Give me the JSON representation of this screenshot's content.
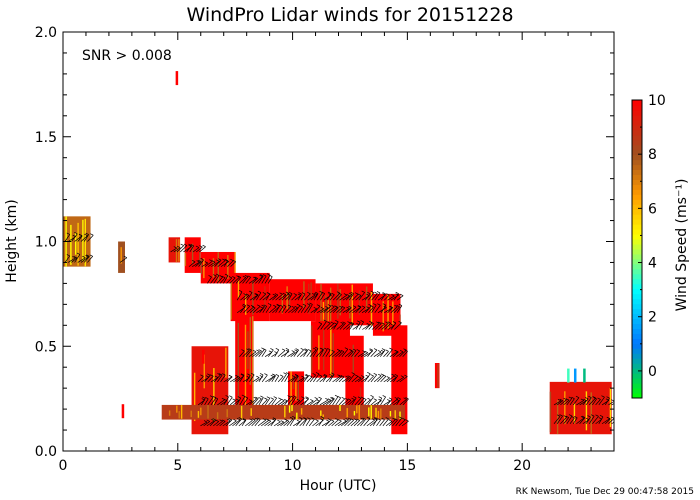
{
  "chart_data": {
    "type": "heatmap",
    "title": "WindPro Lidar winds for 20151228",
    "annotation": "SNR > 0.008",
    "xlabel": "Hour (UTC)",
    "ylabel": "Height (km)",
    "xlim": [
      0,
      24
    ],
    "ylim": [
      0,
      2.0
    ],
    "xticks": [
      {
        "value": 0,
        "label": "0"
      },
      {
        "value": 5,
        "label": "5"
      },
      {
        "value": 10,
        "label": "10"
      },
      {
        "value": 15,
        "label": "15"
      },
      {
        "value": 20,
        "label": "20"
      }
    ],
    "yticks": [
      {
        "value": 0.0,
        "label": "0.0"
      },
      {
        "value": 0.5,
        "label": "0.5"
      },
      {
        "value": 1.0,
        "label": "1.0"
      },
      {
        "value": 1.5,
        "label": "1.5"
      },
      {
        "value": 2.0,
        "label": "2.0"
      }
    ],
    "colorbar": {
      "label": "Wind Speed (ms⁻¹)",
      "range": [
        -1,
        10
      ],
      "ticks": [
        {
          "value": 0,
          "label": "0"
        },
        {
          "value": 2,
          "label": "2"
        },
        {
          "value": 4,
          "label": "4"
        },
        {
          "value": 6,
          "label": "6"
        },
        {
          "value": 8,
          "label": "8"
        },
        {
          "value": 10,
          "label": "10"
        }
      ],
      "stops": [
        {
          "value": -1,
          "color": "#00ff00"
        },
        {
          "value": 1,
          "color": "#0077ff"
        },
        {
          "value": 3,
          "color": "#00ffff"
        },
        {
          "value": 5,
          "color": "#ffff00"
        },
        {
          "value": 6.5,
          "color": "#ff9900"
        },
        {
          "value": 8,
          "color": "#a05020"
        },
        {
          "value": 10,
          "color": "#ff0000"
        }
      ]
    },
    "regions": [
      {
        "x": [
          0.0,
          1.2
        ],
        "y": [
          0.88,
          1.12
        ],
        "speed": 7.5
      },
      {
        "x": [
          2.4,
          2.7
        ],
        "y": [
          0.85,
          1.0
        ],
        "speed": 8
      },
      {
        "x": [
          4.6,
          5.1
        ],
        "y": [
          0.9,
          1.02
        ],
        "speed": 9.5
      },
      {
        "x": [
          5.3,
          6.0
        ],
        "y": [
          0.85,
          1.02
        ],
        "speed": 10
      },
      {
        "x": [
          6.0,
          7.5
        ],
        "y": [
          0.8,
          0.95
        ],
        "speed": 10
      },
      {
        "x": [
          7.3,
          9.0
        ],
        "y": [
          0.62,
          0.85
        ],
        "speed": 10
      },
      {
        "x": [
          9.0,
          11.0
        ],
        "y": [
          0.62,
          0.82
        ],
        "speed": 10
      },
      {
        "x": [
          11.0,
          13.5
        ],
        "y": [
          0.6,
          0.8
        ],
        "speed": 10
      },
      {
        "x": [
          13.5,
          14.7
        ],
        "y": [
          0.55,
          0.75
        ],
        "speed": 10
      },
      {
        "x": [
          7.5,
          8.3
        ],
        "y": [
          0.15,
          0.65
        ],
        "speed": 10
      },
      {
        "x": [
          10.8,
          12.5
        ],
        "y": [
          0.35,
          0.62
        ],
        "speed": 10
      },
      {
        "x": [
          12.3,
          13.1
        ],
        "y": [
          0.15,
          0.55
        ],
        "speed": 10
      },
      {
        "x": [
          14.3,
          15.0
        ],
        "y": [
          0.08,
          0.6
        ],
        "speed": 10
      },
      {
        "x": [
          5.6,
          7.2
        ],
        "y": [
          0.08,
          0.5
        ],
        "speed": 9.5
      },
      {
        "x": [
          4.3,
          14.9
        ],
        "y": [
          0.15,
          0.22
        ],
        "speed": 8.5
      },
      {
        "x": [
          9.8,
          10.5
        ],
        "y": [
          0.22,
          0.38
        ],
        "speed": 10
      },
      {
        "x": [
          16.2,
          16.4
        ],
        "y": [
          0.3,
          0.42
        ],
        "speed": 10
      },
      {
        "x": [
          21.2,
          23.9
        ],
        "y": [
          0.08,
          0.33
        ],
        "speed": 9.5
      }
    ],
    "points": [
      {
        "x": 4.95,
        "y": 1.78,
        "speed": 10
      },
      {
        "x": 2.6,
        "y": 0.19,
        "speed": 10
      },
      {
        "x": 6.1,
        "y": 0.45,
        "speed": 10
      },
      {
        "x": 22.0,
        "y": 0.36,
        "speed": 3.5
      },
      {
        "x": 22.3,
        "y": 0.36,
        "speed": 1.5
      },
      {
        "x": 22.7,
        "y": 0.36,
        "speed": 0
      }
    ],
    "barb_rows": [
      {
        "y": 1.0,
        "x": [
          0.0,
          1.2
        ]
      },
      {
        "y": 0.9,
        "x": [
          0.0,
          1.1
        ]
      },
      {
        "y": 0.9,
        "x": [
          2.4,
          2.6
        ]
      },
      {
        "y": 0.95,
        "x": [
          4.6,
          6.0
        ]
      },
      {
        "y": 0.88,
        "x": [
          5.4,
          7.4
        ]
      },
      {
        "y": 0.8,
        "x": [
          6.2,
          9.0
        ]
      },
      {
        "y": 0.72,
        "x": [
          7.5,
          14.6
        ]
      },
      {
        "y": 0.66,
        "x": [
          7.5,
          14.6
        ]
      },
      {
        "y": 0.58,
        "x": [
          11.0,
          14.5
        ]
      },
      {
        "y": 0.45,
        "x": [
          7.6,
          14.8
        ]
      },
      {
        "y": 0.33,
        "x": [
          5.8,
          14.8
        ]
      },
      {
        "y": 0.22,
        "x": [
          5.8,
          14.9
        ]
      },
      {
        "y": 0.12,
        "x": [
          5.9,
          14.9
        ]
      },
      {
        "y": 0.22,
        "x": [
          21.3,
          23.9
        ]
      },
      {
        "y": 0.13,
        "x": [
          21.3,
          23.9
        ]
      }
    ]
  },
  "footer": {
    "credit": "RK Newsom, Tue Dec 29 00:47:58 2015"
  }
}
